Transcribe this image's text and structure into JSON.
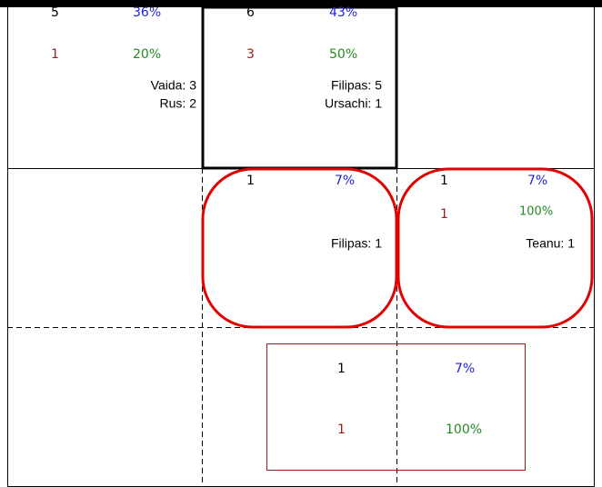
{
  "cells": [
    {
      "count": "5",
      "percent": "36%",
      "count2": "1",
      "percent2": "20%",
      "names": [
        "Vaida: 3",
        "Rus: 2"
      ]
    },
    {
      "count": "6",
      "percent": "43%",
      "count2": "3",
      "percent2": "50%",
      "names": [
        "Filipas: 5",
        "Ursachi: 1"
      ]
    },
    {
      "count": "1",
      "percent": "7%",
      "names": [
        "Filipas: 1"
      ]
    },
    {
      "count": "1",
      "percent": "7%",
      "count2": "1",
      "percent2": "100%",
      "names": [
        "Teanu: 1"
      ]
    },
    {
      "count": "1",
      "percent": "7%",
      "count2": "1",
      "percent2": "100%"
    }
  ]
}
